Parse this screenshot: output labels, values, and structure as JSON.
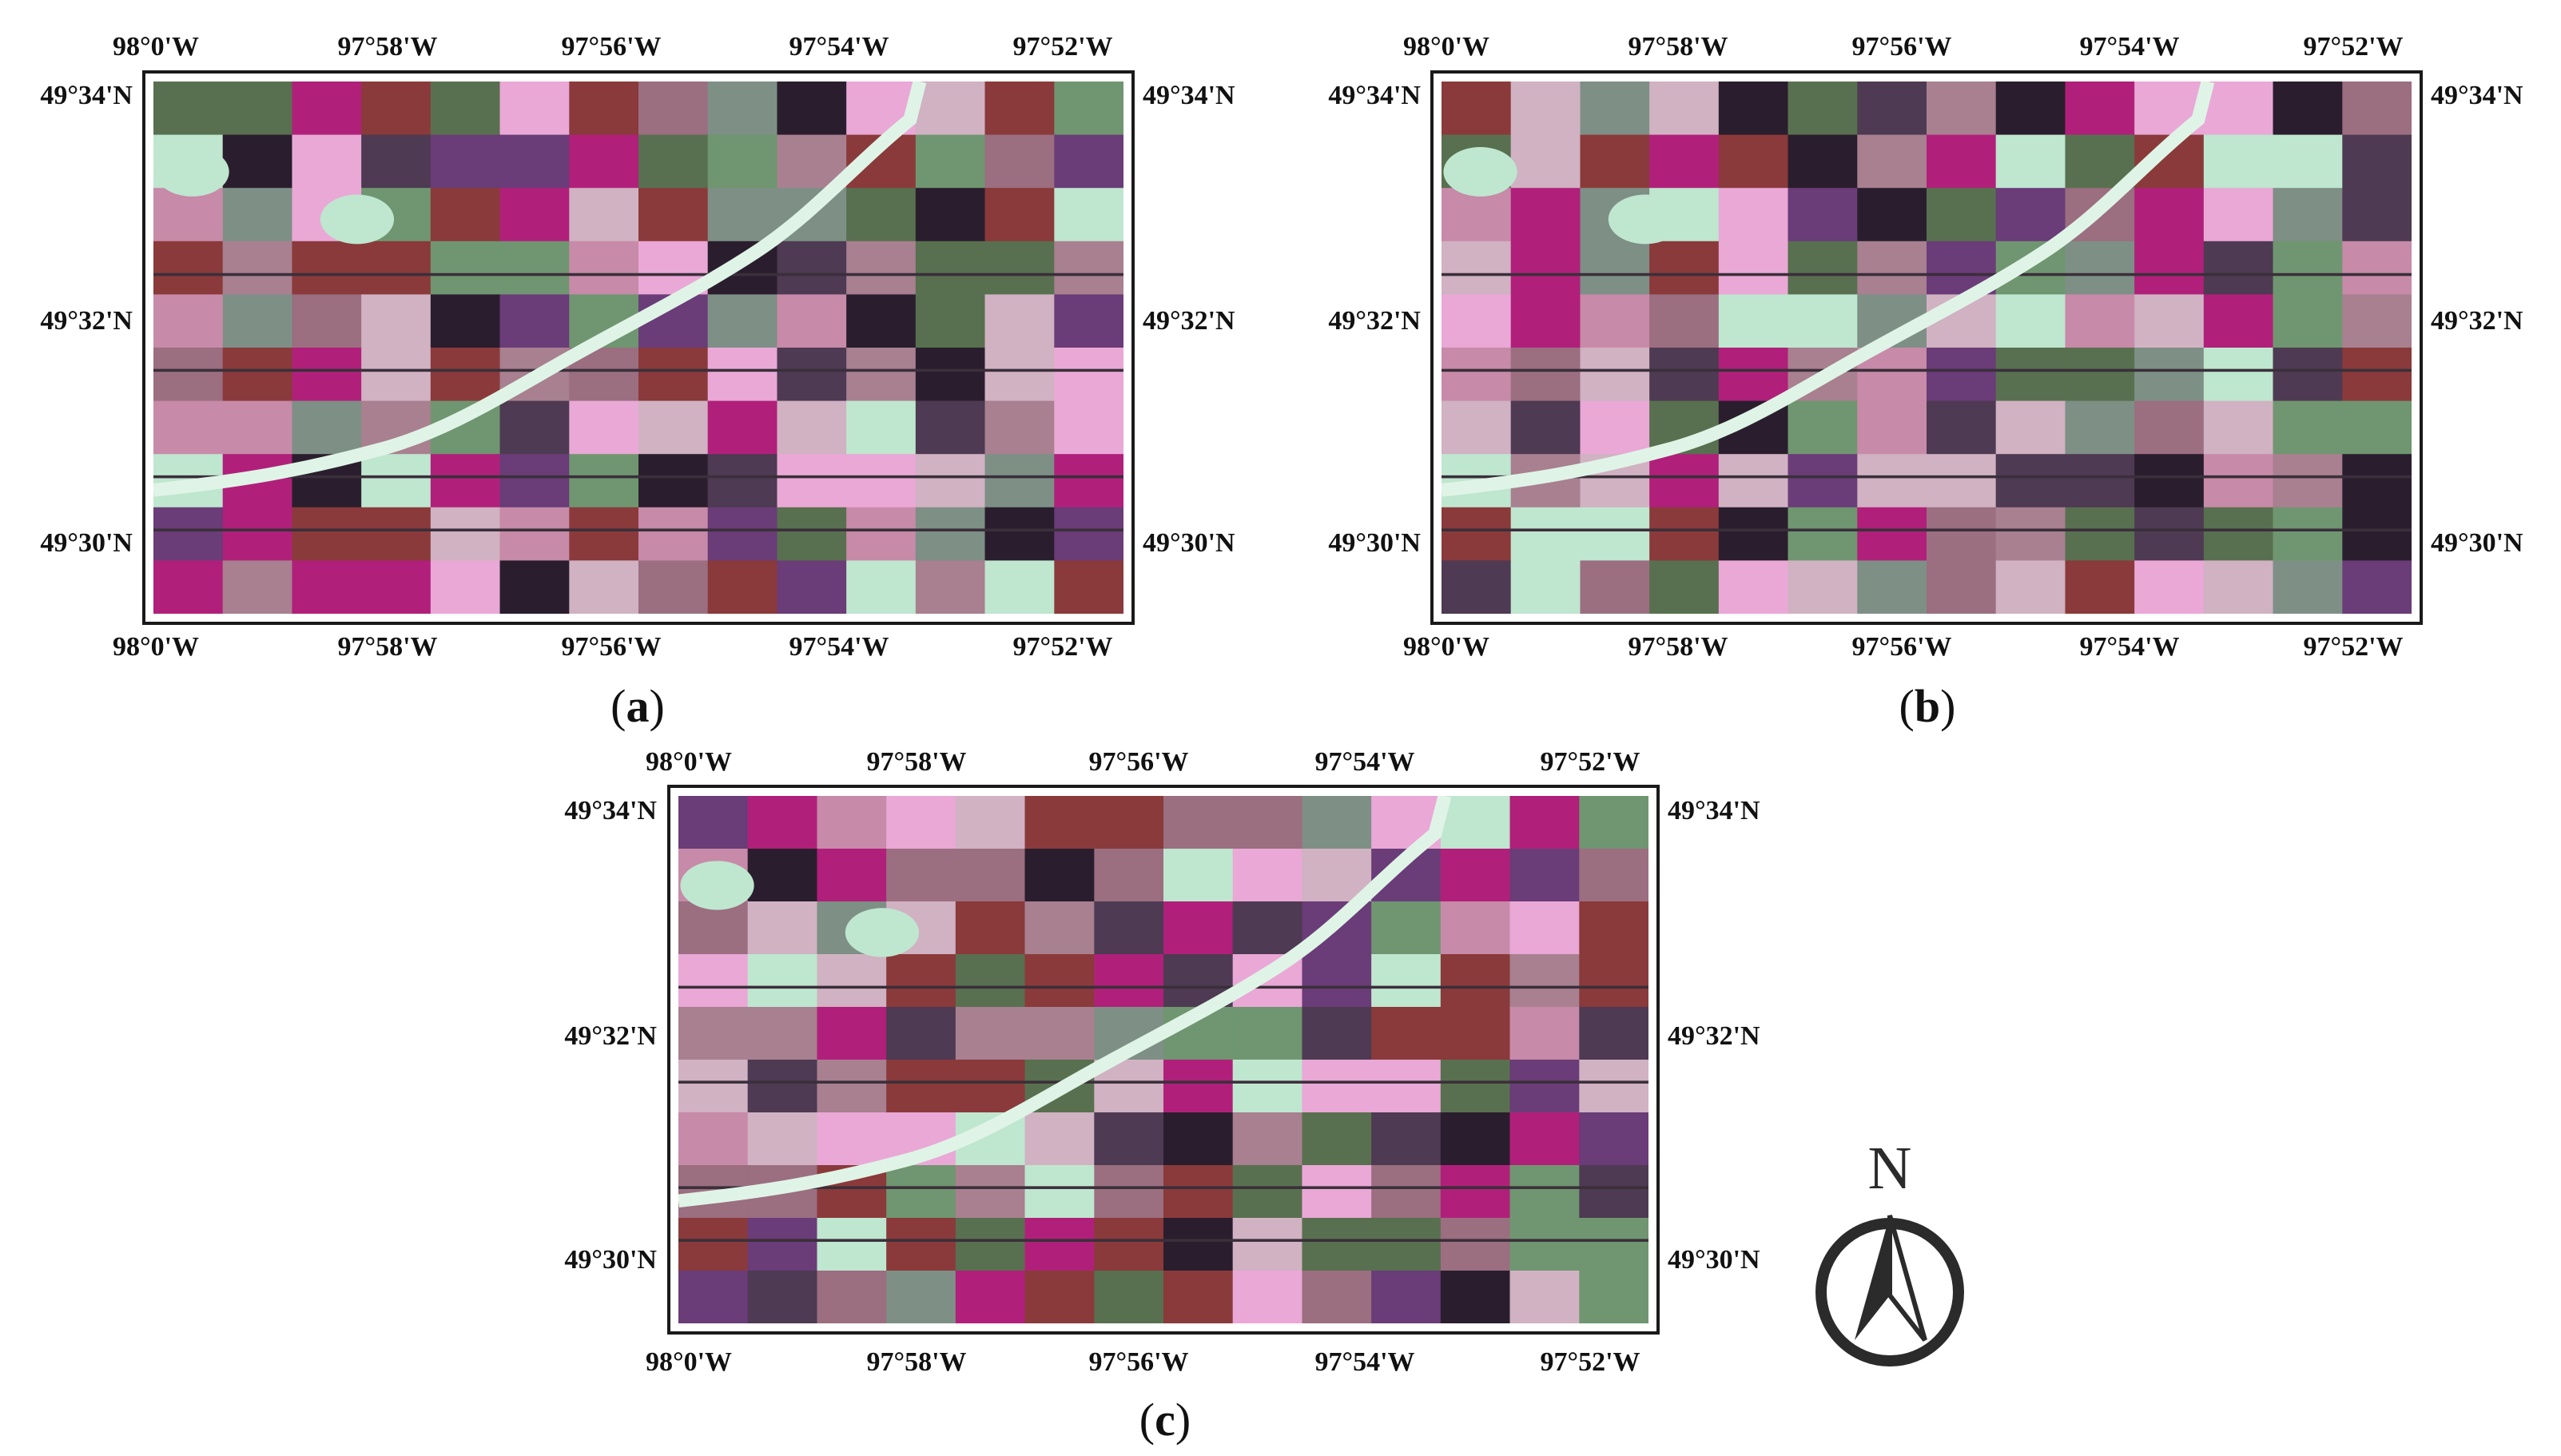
{
  "panels": [
    {
      "id": "a",
      "caption_open": "(",
      "caption_letter": "a",
      "caption_close": ")"
    },
    {
      "id": "b",
      "caption_open": "(",
      "caption_letter": "b",
      "caption_close": ")"
    },
    {
      "id": "c",
      "caption_open": "(",
      "caption_letter": "c",
      "caption_close": ")"
    }
  ],
  "longitudes": [
    "98°0'W",
    "97°58'W",
    "97°56'W",
    "97°54'W",
    "97°52'W"
  ],
  "latitudes": [
    "49°34'N",
    "49°32'N",
    "49°30'N"
  ],
  "north_arrow": {
    "letter": "N",
    "icon": "north-arrow-icon"
  },
  "palette": {
    "magenta": "#b0207a",
    "pink": "#e9a8d6",
    "green": "#6f9670",
    "dark": "#2a1e2e",
    "purple": "#6a3c78",
    "red": "#8a3a3a",
    "mint": "#bfe6cf",
    "river": "#dff4e6"
  }
}
